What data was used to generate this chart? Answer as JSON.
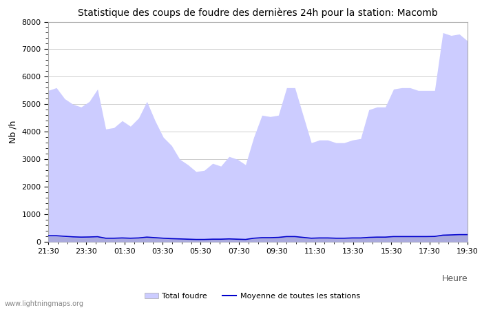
{
  "title": "Statistique des coups de foudre des dernières 24h pour la station: Macomb",
  "xlabel": "Heure",
  "ylabel": "Nb /h",
  "watermark": "www.lightningmaps.org",
  "ylim": [
    0,
    8000
  ],
  "yticks": [
    0,
    1000,
    2000,
    3000,
    4000,
    5000,
    6000,
    7000,
    8000
  ],
  "xtick_labels": [
    "21:30",
    "23:30",
    "01:30",
    "03:30",
    "05:30",
    "07:30",
    "09:30",
    "11:30",
    "13:30",
    "15:30",
    "17:30",
    "19:30"
  ],
  "total_foudre_color": "#ccccff",
  "macomb_color": "#aaaadd",
  "mean_color": "#0000cc",
  "background_plot": "#ffffff",
  "background_fig": "#ffffff",
  "total_foudre": [
    5500,
    5600,
    5200,
    5000,
    4900,
    5100,
    5550,
    4100,
    4150,
    4400,
    4200,
    4500,
    5100,
    4400,
    3800,
    3500,
    3000,
    2800,
    2550,
    2600,
    2850,
    2750,
    3100,
    3000,
    2800,
    3800,
    4600,
    4550,
    4600,
    5600,
    5600,
    4600,
    3600,
    3700,
    3700,
    3600,
    3600,
    3700,
    3750,
    4800,
    4900,
    4900,
    5550,
    5600,
    5600,
    5500,
    5500,
    5500,
    7600,
    7500,
    7550,
    7300
  ],
  "macomb": [
    200,
    200,
    180,
    160,
    150,
    160,
    170,
    120,
    120,
    130,
    120,
    130,
    160,
    140,
    120,
    110,
    100,
    90,
    80,
    80,
    90,
    90,
    100,
    90,
    80,
    120,
    140,
    140,
    150,
    180,
    180,
    150,
    120,
    130,
    130,
    120,
    120,
    130,
    130,
    150,
    160,
    160,
    180,
    180,
    180,
    180,
    180,
    185,
    230,
    240,
    250,
    250
  ],
  "mean_line": [
    220,
    220,
    200,
    180,
    170,
    175,
    185,
    130,
    130,
    140,
    130,
    140,
    170,
    150,
    130,
    115,
    105,
    95,
    85,
    85,
    95,
    95,
    105,
    95,
    85,
    130,
    150,
    150,
    160,
    190,
    190,
    160,
    130,
    140,
    140,
    130,
    130,
    140,
    140,
    160,
    170,
    170,
    190,
    190,
    190,
    190,
    190,
    195,
    240,
    250,
    260,
    260
  ],
  "n_points": 52,
  "legend_row1": [
    "Total foudre",
    "Moyenne de toutes les stations"
  ]
}
